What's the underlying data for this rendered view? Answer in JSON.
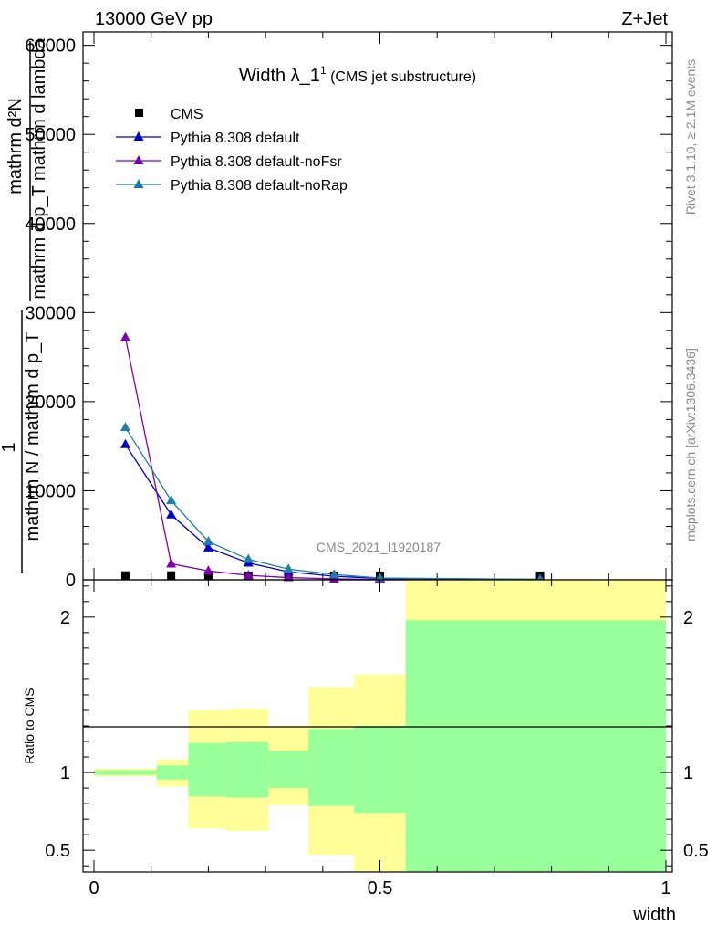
{
  "header": {
    "left": "13000 GeV pp",
    "right": "Z+Jet"
  },
  "side_labels": {
    "rivet": "Rivet 3.1.10, ≥ 2.1M events",
    "mcplots": "mcplots.cern.ch [arXiv:1306.3436]"
  },
  "chart_data": [
    {
      "type": "line",
      "title_main": "Width λ_1",
      "title_sup": "1",
      "title_sub": " (CMS jet substructure)",
      "watermark": "CMS_2021_I1920187",
      "ylabel_top_lines": [
        "mathrm d²N",
        "mathrm d p_T mathrm d lambda"
      ],
      "ylabel_numerator": "1",
      "ylabel_denominator": "mathrm N / mathrm d p_T",
      "ylim": [
        0,
        61500
      ],
      "xlim": [
        0,
        1
      ],
      "yticks": [
        0,
        10000,
        20000,
        30000,
        40000,
        50000,
        60000
      ],
      "ytick_labels": [
        "0",
        "10000",
        "20000",
        "30000",
        "40000",
        "50000",
        "60000"
      ],
      "legend_position": "top-left",
      "x": [
        0.055,
        0.135,
        0.2,
        0.27,
        0.34,
        0.42,
        0.5,
        0.78
      ],
      "series": [
        {
          "name": "CMS",
          "marker": "square",
          "color": "#000000",
          "values": [
            30,
            30,
            20,
            10,
            8,
            5,
            3,
            2
          ]
        },
        {
          "name": "Pythia 8.308 default",
          "marker": "triangle",
          "color": "#0000cc",
          "values": [
            15200,
            7300,
            3600,
            1900,
            900,
            400,
            150,
            50
          ]
        },
        {
          "name": "Pythia 8.308 default-noFsr",
          "marker": "triangle",
          "color": "#7f00b0",
          "values": [
            27200,
            1800,
            1000,
            500,
            250,
            100,
            40,
            10
          ]
        },
        {
          "name": "Pythia 8.308 default-noRap",
          "marker": "triangle",
          "color": "#1f7fa8",
          "values": [
            17100,
            8900,
            4300,
            2300,
            1200,
            600,
            200,
            60
          ]
        }
      ]
    },
    {
      "type": "area",
      "ylabel": "Ratio to CMS",
      "xlabel": "width",
      "xlim": [
        0,
        1
      ],
      "ylim": [
        0.36,
        2.24
      ],
      "xticks": [
        0,
        0.5,
        1
      ],
      "xtick_labels": [
        "0",
        "0.5",
        "1"
      ],
      "yticks": [
        0.5,
        1,
        2
      ],
      "ytick_labels": [
        "0.5",
        "1",
        "2"
      ],
      "bands": {
        "edges": [
          0.0,
          0.11,
          0.165,
          0.23,
          0.305,
          0.375,
          0.455,
          0.545,
          1.0
        ],
        "stat_color": "#99ff99",
        "total_color": "#ffff99",
        "stat_low": [
          0.985,
          0.955,
          0.845,
          0.84,
          0.9,
          0.785,
          0.74,
          0.36
        ],
        "stat_high": [
          1.015,
          1.045,
          1.19,
          1.195,
          1.14,
          1.28,
          1.3,
          1.98
        ],
        "total_low": [
          0.975,
          0.91,
          0.64,
          0.625,
          0.79,
          0.47,
          0.36,
          0.36
        ],
        "total_high": [
          1.025,
          1.085,
          1.4,
          1.41,
          1.3,
          1.55,
          1.63,
          2.24
        ]
      }
    }
  ]
}
